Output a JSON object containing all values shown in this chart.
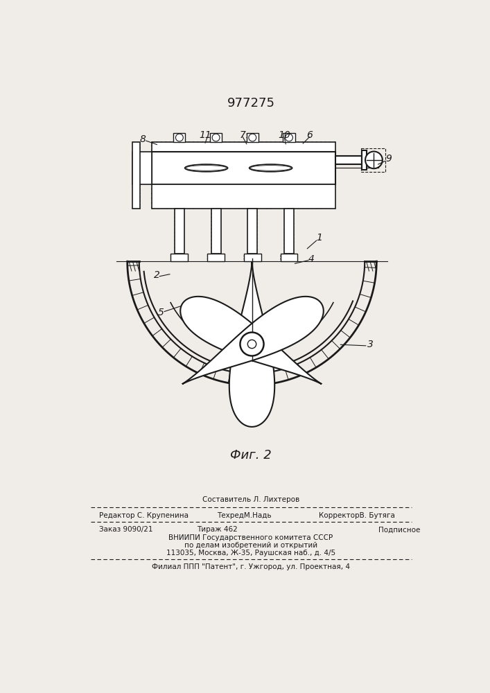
{
  "patent_number": "977275",
  "fig_label": "Фиг. 2",
  "background_color": "#f0ede8",
  "line_color": "#1a1a1a",
  "editor_line1": "Составитель Л. Лихтеров",
  "editor_line2_left": "Редактор С. Крупенина",
  "editor_line2_mid": "ТехредМ.Надь",
  "editor_line2_right": "КорректорВ. Бутяга",
  "footer_line1_left": "Заказ 9090/21",
  "footer_line1_mid": "Тираж 462",
  "footer_line1_right": "Подписное",
  "footer_line2": "ВНИИПИ Государственного комитета СССР",
  "footer_line3": "по делам изобретений и открытий",
  "footer_line4": "113035, Москва, Ж-35, Раушская наб., д. 4/5",
  "footer_last": "Филиал ППП \"Патент\", г. Ужгород, ул. Проектная, 4"
}
